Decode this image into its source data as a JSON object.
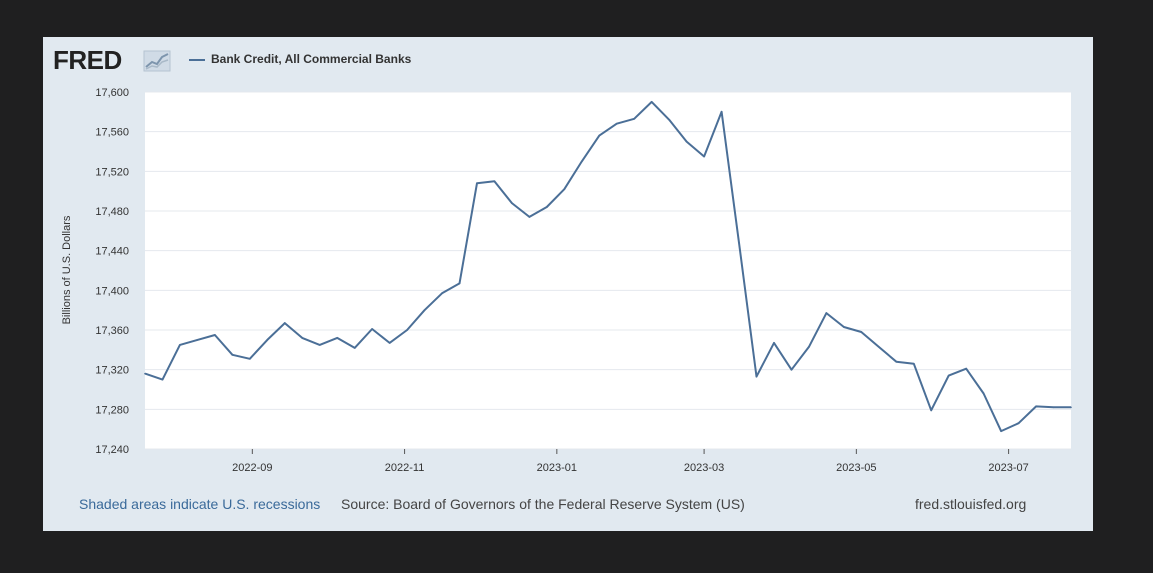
{
  "header": {
    "logo": "FRED",
    "logo_icon": "chart-line-icon",
    "legend_label": "Bank Credit, All Commercial Banks"
  },
  "footer": {
    "recessions_link": "Shaded areas indicate U.S. recessions",
    "source": "Source: Board of Governors of the Federal Reserve System (US)",
    "site": "fred.stlouisfed.org"
  },
  "colors": {
    "line": "#4b6f97",
    "plot_background": "#ffffff",
    "card_background": "#e1e9f0",
    "grid": "#e4e8ee"
  },
  "chart_data": {
    "type": "line",
    "title": "",
    "xlabel": "",
    "ylabel": "Billions of U.S. Dollars",
    "ylim": [
      17240,
      17600
    ],
    "xlim": [
      "2022-07-20",
      "2023-07-26"
    ],
    "yticks": [
      17240,
      17280,
      17320,
      17360,
      17400,
      17440,
      17480,
      17520,
      17560,
      17600
    ],
    "ytick_labels": [
      "17,240",
      "17,280",
      "17,320",
      "17,360",
      "17,400",
      "17,440",
      "17,480",
      "17,520",
      "17,560",
      "17,600"
    ],
    "xticks": [
      "2022-09-01",
      "2022-11-01",
      "2023-01-01",
      "2023-03-01",
      "2023-05-01",
      "2023-07-01"
    ],
    "xtick_labels": [
      "2022-09",
      "2022-11",
      "2023-01",
      "2023-03",
      "2023-05",
      "2023-07"
    ],
    "grid": true,
    "legend": "top-left",
    "series": [
      {
        "name": "Bank Credit, All Commercial Banks",
        "x": [
          "2022-07-20",
          "2022-07-27",
          "2022-08-03",
          "2022-08-10",
          "2022-08-17",
          "2022-08-24",
          "2022-08-31",
          "2022-09-07",
          "2022-09-14",
          "2022-09-21",
          "2022-09-28",
          "2022-10-05",
          "2022-10-12",
          "2022-10-19",
          "2022-10-26",
          "2022-11-02",
          "2022-11-09",
          "2022-11-16",
          "2022-11-23",
          "2022-11-30",
          "2022-12-07",
          "2022-12-14",
          "2022-12-21",
          "2022-12-28",
          "2023-01-04",
          "2023-01-11",
          "2023-01-18",
          "2023-01-25",
          "2023-02-01",
          "2023-02-08",
          "2023-02-15",
          "2023-02-22",
          "2023-03-01",
          "2023-03-08",
          "2023-03-15",
          "2023-03-22",
          "2023-03-29",
          "2023-04-05",
          "2023-04-12",
          "2023-04-19",
          "2023-04-26",
          "2023-05-03",
          "2023-05-10",
          "2023-05-17",
          "2023-05-24",
          "2023-05-31",
          "2023-06-07",
          "2023-06-14",
          "2023-06-21",
          "2023-06-28",
          "2023-07-05",
          "2023-07-12",
          "2023-07-19",
          "2023-07-26"
        ],
        "values": [
          17316,
          17310,
          17345,
          17350,
          17355,
          17335,
          17331,
          17350,
          17367,
          17352,
          17345,
          17352,
          17342,
          17361,
          17347,
          17360,
          17380,
          17397,
          17407,
          17508,
          17510,
          17488,
          17474,
          17484,
          17502,
          17530,
          17556,
          17568,
          17573,
          17590,
          17572,
          17550,
          17535,
          17580,
          17448,
          17313,
          17347,
          17320,
          17343,
          17377,
          17363,
          17358,
          17343,
          17328,
          17326,
          17279,
          17314,
          17321,
          17296,
          17258,
          17266,
          17283,
          17282,
          17282
        ]
      }
    ]
  }
}
